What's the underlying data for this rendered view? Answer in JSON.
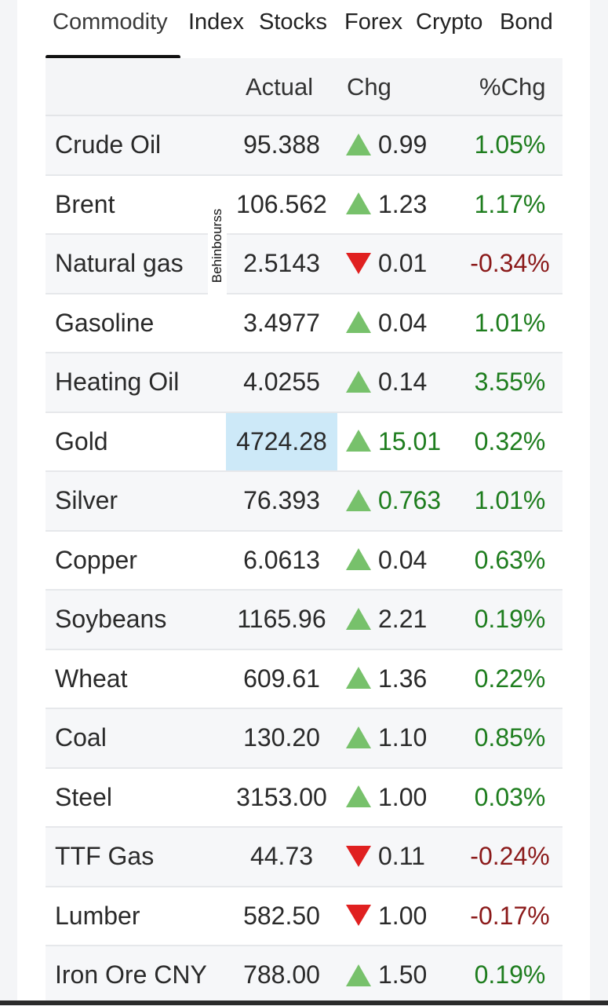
{
  "tabs": [
    {
      "label": "Commodity",
      "active": true
    },
    {
      "label": "Index"
    },
    {
      "label": "Stocks"
    },
    {
      "label": "Forex"
    },
    {
      "label": "Crypto"
    },
    {
      "label": "Bond"
    }
  ],
  "table": {
    "headers": {
      "actual": "Actual",
      "chg": "Chg",
      "pct": "%Chg"
    },
    "rows": [
      {
        "name": "Crude Oil",
        "actual": "95.388",
        "direction": "up",
        "chg": "0.99",
        "pct": "1.05%"
      },
      {
        "name": "Brent",
        "actual": "106.562",
        "direction": "up",
        "chg": "1.23",
        "pct": "1.17%"
      },
      {
        "name": "Natural gas",
        "actual": "2.5143",
        "direction": "down",
        "chg": "0.01",
        "pct": "-0.34%"
      },
      {
        "name": "Gasoline",
        "actual": "3.4977",
        "direction": "up",
        "chg": "0.04",
        "pct": "1.01%"
      },
      {
        "name": "Heating Oil",
        "actual": "4.0255",
        "direction": "up",
        "chg": "0.14",
        "pct": "3.55%"
      },
      {
        "name": "Gold",
        "actual": "4724.28",
        "direction": "up",
        "chg": "15.01",
        "pct": "0.32%",
        "highlighted": true
      },
      {
        "name": "Silver",
        "actual": "76.393",
        "direction": "up",
        "chg": "0.763",
        "pct": "1.01%",
        "chg_green": true
      },
      {
        "name": "Copper",
        "actual": "6.0613",
        "direction": "up",
        "chg": "0.04",
        "pct": "0.63%"
      },
      {
        "name": "Soybeans",
        "actual": "1165.96",
        "direction": "up",
        "chg": "2.21",
        "pct": "0.19%"
      },
      {
        "name": "Wheat",
        "actual": "609.61",
        "direction": "up",
        "chg": "1.36",
        "pct": "0.22%"
      },
      {
        "name": "Coal",
        "actual": "130.20",
        "direction": "up",
        "chg": "1.10",
        "pct": "0.85%"
      },
      {
        "name": "Steel",
        "actual": "3153.00",
        "direction": "up",
        "chg": "1.00",
        "pct": "0.03%"
      },
      {
        "name": "TTF Gas",
        "actual": "44.73",
        "direction": "down",
        "chg": "0.11",
        "pct": "-0.24%"
      },
      {
        "name": "Lumber",
        "actual": "582.50",
        "direction": "down",
        "chg": "1.00",
        "pct": "-0.17%"
      },
      {
        "name": "Iron Ore CNY",
        "actual": "788.00",
        "direction": "up",
        "chg": "1.50",
        "pct": "0.19%"
      }
    ]
  },
  "watermark": "Behinbourss",
  "colors": {
    "up_arrow": "#77c16b",
    "down_arrow": "#e02020",
    "positive_text": "#1e7d1e",
    "negative_text": "#8b1a1a",
    "highlight": "#cde9f8"
  }
}
